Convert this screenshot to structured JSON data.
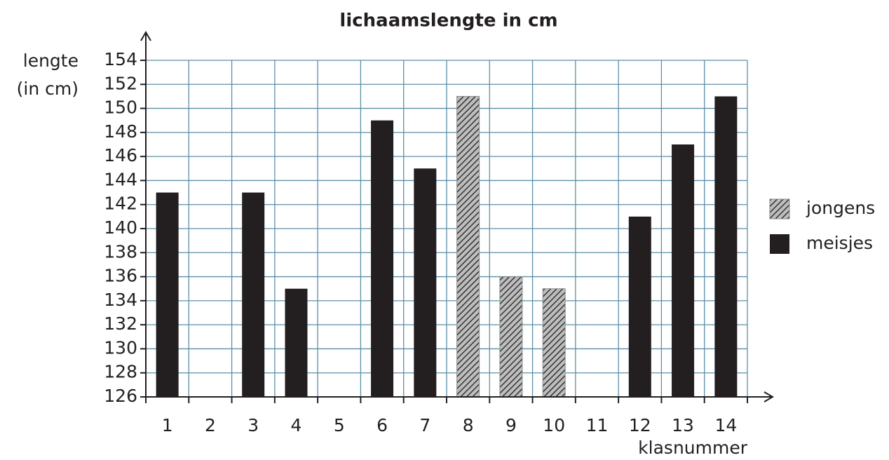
{
  "chart_data": {
    "type": "bar",
    "title": "lichaamslengte in cm",
    "ylabel": [
      "lengte",
      "(in cm)"
    ],
    "xlabel": "klasnummer",
    "categories": [
      "1",
      "2",
      "3",
      "4",
      "5",
      "6",
      "7",
      "8",
      "9",
      "10",
      "11",
      "12",
      "13",
      "14"
    ],
    "series": [
      {
        "name": "jongens",
        "color": "#8a8a8a",
        "hatch": true,
        "values": [
          null,
          null,
          null,
          null,
          null,
          null,
          null,
          151,
          136,
          135,
          null,
          null,
          null,
          null
        ]
      },
      {
        "name": "meisjes",
        "color": "#231f20",
        "hatch": false,
        "values": [
          143,
          null,
          143,
          135,
          null,
          149,
          145,
          null,
          null,
          null,
          null,
          141,
          147,
          151
        ]
      }
    ],
    "ylim": [
      126,
      154
    ],
    "yticks": [
      126,
      128,
      130,
      132,
      134,
      136,
      138,
      140,
      142,
      144,
      146,
      148,
      150,
      152,
      154
    ],
    "grid": true,
    "grid_color": "#5b8fa8",
    "legend": "right"
  }
}
